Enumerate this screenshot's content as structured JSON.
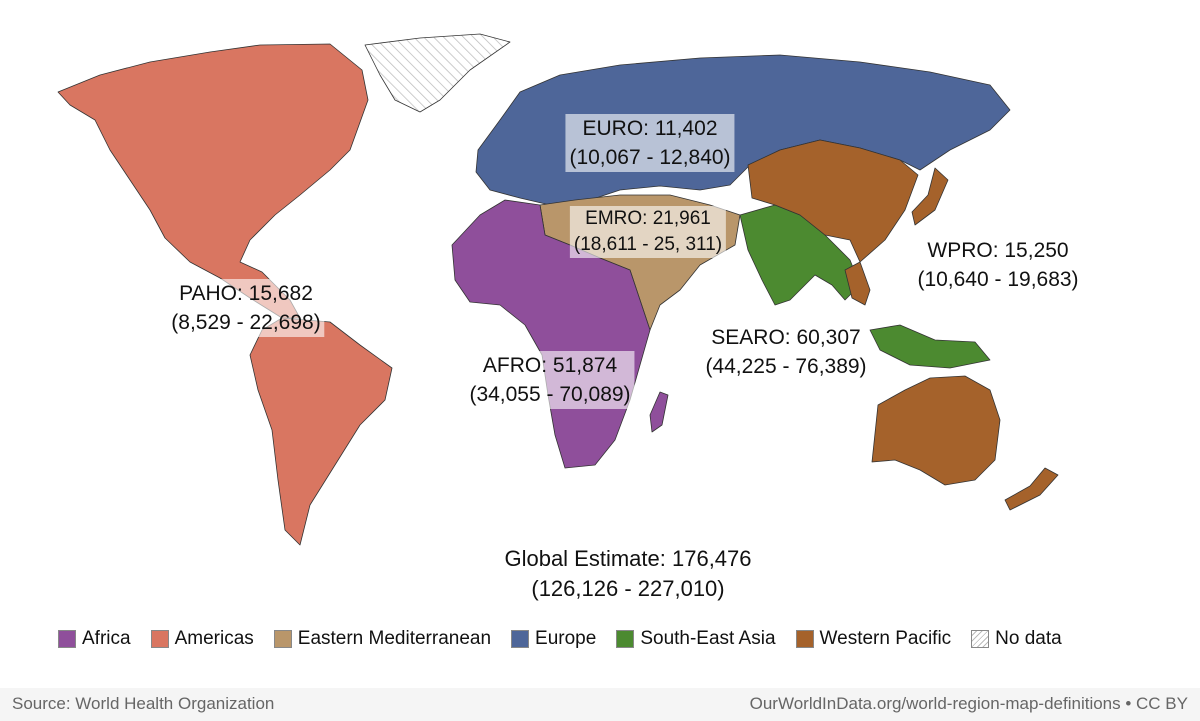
{
  "map": {
    "regions": [
      {
        "title": "EURO: 11,402",
        "range": "(10,067 - 12,840)"
      },
      {
        "title": "EMRO: 21,961",
        "range": "(18,611 - 25, 311)"
      },
      {
        "title": "WPRO: 15,250",
        "range": "(10,640 - 19,683)"
      },
      {
        "title": "PAHO: 15,682",
        "range": "(8,529 - 22,698)"
      },
      {
        "title": "SEARO: 60,307",
        "range": "(44,225 - 76,389)"
      },
      {
        "title": "AFRO: 51,874",
        "range": "(34,055 - 70,089)"
      }
    ],
    "global": {
      "title": "Global Estimate: 176,476",
      "range": "(126,126 - 227,010)"
    },
    "legend": [
      {
        "name": "Africa",
        "color": "#8f4f9b"
      },
      {
        "name": "Americas",
        "color": "#d97661"
      },
      {
        "name": "Eastern Mediterranean",
        "color": "#b9966a"
      },
      {
        "name": "Europe",
        "color": "#4e6699"
      },
      {
        "name": "South-East Asia",
        "color": "#4c8a30"
      },
      {
        "name": "Western Pacific",
        "color": "#a5622b"
      },
      {
        "name": "No data"
      }
    ],
    "source": "Source: World Health Organization",
    "credit": "OurWorldInData.org/world-region-map-definitions • CC BY"
  }
}
